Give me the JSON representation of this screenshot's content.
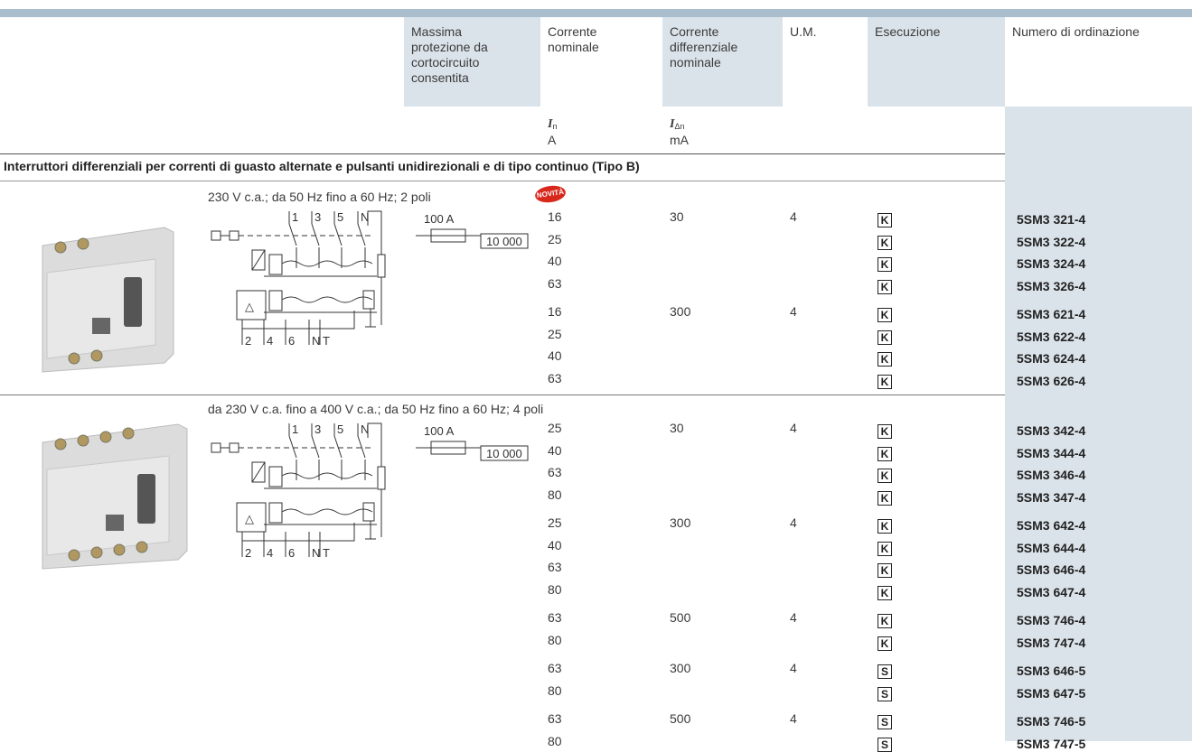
{
  "header": {
    "columns": [
      "Massima protezione da cortocircuito consentita",
      "Corrente nominale",
      "Corrente differenziale nominale",
      "U.M.",
      "Esecuzione",
      "Numero di ordinazione"
    ],
    "units": {
      "rated_current": {
        "symbol": "I",
        "subscript": "n",
        "unit": "A"
      },
      "residual_current": {
        "symbol": "I",
        "subscript": "Δn",
        "unit": "mA"
      }
    }
  },
  "section_title": "Interruttori differenziali per correnti di guasto alternate e pulsanti unidirezionali e di tipo continuo (Tipo B)",
  "groups": [
    {
      "description": "230 V c.a.; da 50 Hz fino a 60 Hz; 2 poli",
      "badge": "NOVITÀ",
      "diagram": {
        "top_terminals": [
          "1",
          "3",
          "5",
          "N"
        ],
        "bottom_terminals": [
          "2",
          "4",
          "6",
          "N",
          "T"
        ],
        "fuse": "100 A",
        "breaking_capacity": "10 000"
      },
      "blocks": [
        {
          "currents": [
            16,
            25,
            40,
            63
          ],
          "residual_current": 30,
          "um": 4,
          "execution": [
            "K",
            "K",
            "K",
            "K"
          ],
          "order_numbers": [
            "5SM3 321-4",
            "5SM3 322-4",
            "5SM3 324-4",
            "5SM3 326-4"
          ]
        },
        {
          "currents": [
            16,
            25,
            40,
            63
          ],
          "residual_current": 300,
          "um": 4,
          "execution": [
            "K",
            "K",
            "K",
            "K"
          ],
          "order_numbers": [
            "5SM3 621-4",
            "5SM3 622-4",
            "5SM3 624-4",
            "5SM3 626-4"
          ]
        }
      ]
    },
    {
      "description": "da 230 V c.a. fino a 400 V c.a.; da 50 Hz fino a 60 Hz; 4 poli",
      "diagram": {
        "top_terminals": [
          "1",
          "3",
          "5",
          "N"
        ],
        "bottom_terminals": [
          "2",
          "4",
          "6",
          "N",
          "T"
        ],
        "fuse": "100 A",
        "breaking_capacity": "10 000"
      },
      "blocks": [
        {
          "currents": [
            25,
            40,
            63,
            80
          ],
          "residual_current": 30,
          "um": 4,
          "execution": [
            "K",
            "K",
            "K",
            "K"
          ],
          "order_numbers": [
            "5SM3 342-4",
            "5SM3 344-4",
            "5SM3 346-4",
            "5SM3 347-4"
          ]
        },
        {
          "currents": [
            25,
            40,
            63,
            80
          ],
          "residual_current": 300,
          "um": 4,
          "execution": [
            "K",
            "K",
            "K",
            "K"
          ],
          "order_numbers": [
            "5SM3 642-4",
            "5SM3 644-4",
            "5SM3 646-4",
            "5SM3 647-4"
          ]
        },
        {
          "currents": [
            63,
            80
          ],
          "residual_current": 500,
          "um": 4,
          "execution": [
            "K",
            "K"
          ],
          "order_numbers": [
            "5SM3 746-4",
            "5SM3 747-4"
          ]
        },
        {
          "currents": [
            63,
            80
          ],
          "residual_current": 300,
          "um": 4,
          "execution": [
            "S",
            "S"
          ],
          "order_numbers": [
            "5SM3 646-5",
            "5SM3 647-5"
          ]
        },
        {
          "currents": [
            63,
            80
          ],
          "residual_current": 500,
          "um": 4,
          "execution": [
            "S",
            "S"
          ],
          "order_numbers": [
            "5SM3 746-5",
            "5SM3 747-5"
          ]
        }
      ]
    }
  ]
}
